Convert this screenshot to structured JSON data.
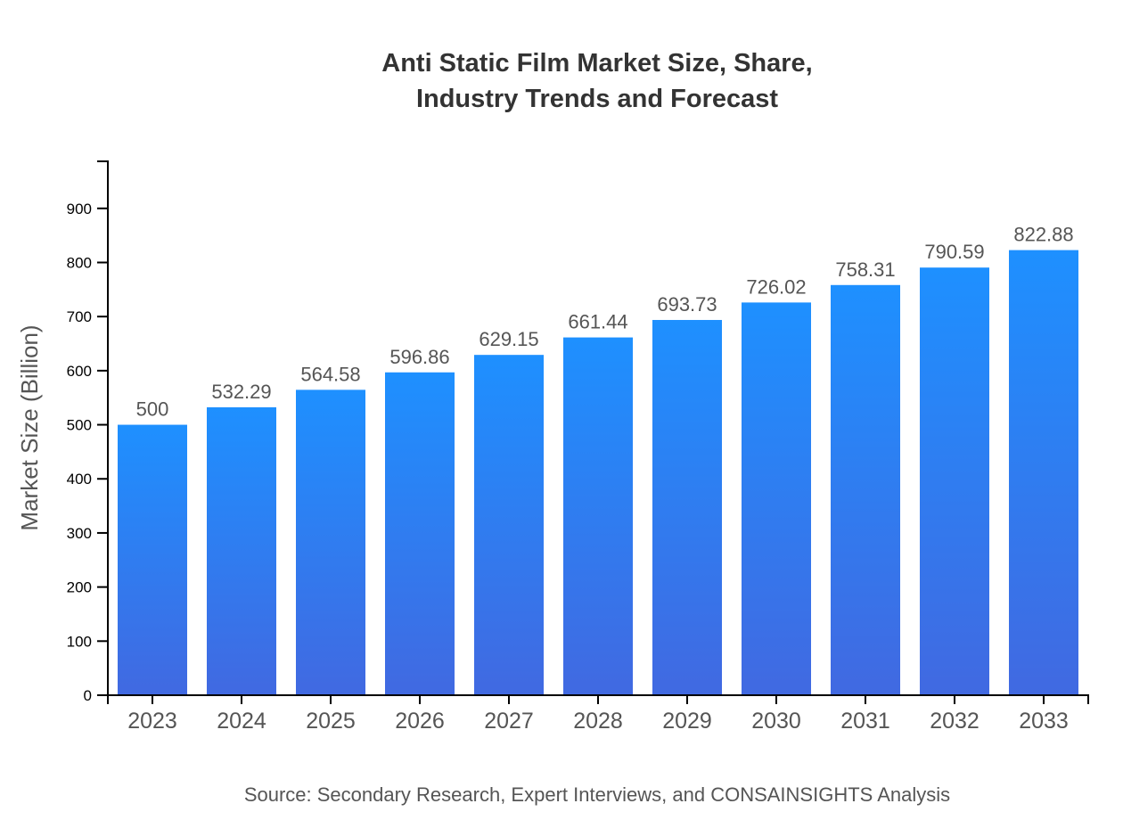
{
  "chart_data": {
    "type": "bar",
    "title_lines": [
      "Anti Static Film Market Size, Share,",
      "Industry Trends and Forecast"
    ],
    "xlabel": "",
    "ylabel": "Market Size (Billion)",
    "categories": [
      "2023",
      "2024",
      "2025",
      "2026",
      "2027",
      "2028",
      "2029",
      "2030",
      "2031",
      "2032",
      "2033"
    ],
    "values": [
      500,
      532.29,
      564.58,
      596.86,
      629.15,
      661.44,
      693.73,
      726.02,
      758.31,
      790.59,
      822.88
    ],
    "data_labels": [
      "500",
      "532.29",
      "564.58",
      "596.86",
      "629.15",
      "661.44",
      "693.73",
      "726.02",
      "758.31",
      "790.59",
      "822.88"
    ],
    "yticks": [
      0,
      100,
      200,
      300,
      400,
      500,
      600,
      700,
      800,
      900
    ],
    "ylim": [
      0,
      987
    ],
    "grid": false,
    "colors": {
      "bar_top": "#1e90ff",
      "bar_bottom": "#4169e1"
    },
    "source": "Source: Secondary Research, Expert Interviews, and CONSAINSIGHTS Analysis"
  }
}
